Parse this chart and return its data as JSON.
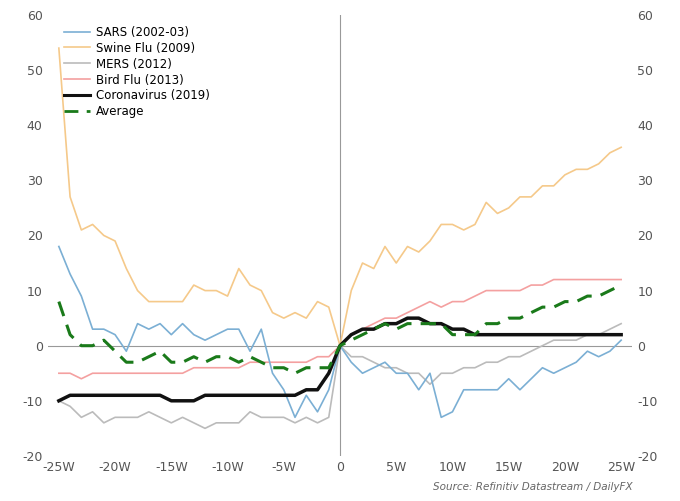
{
  "x_weeks": [
    -25,
    -24,
    -23,
    -22,
    -21,
    -20,
    -19,
    -18,
    -17,
    -16,
    -15,
    -14,
    -13,
    -12,
    -11,
    -10,
    -9,
    -8,
    -7,
    -6,
    -5,
    -4,
    -3,
    -2,
    -1,
    0,
    1,
    2,
    3,
    4,
    5,
    6,
    7,
    8,
    9,
    10,
    11,
    12,
    13,
    14,
    15,
    16,
    17,
    18,
    19,
    20,
    21,
    22,
    23,
    24,
    25
  ],
  "sars": [
    18,
    13,
    9,
    3,
    3,
    2,
    -1,
    4,
    3,
    4,
    2,
    4,
    2,
    1,
    2,
    3,
    3,
    -1,
    3,
    -5,
    -8,
    -13,
    -9,
    -12,
    -8,
    0,
    -3,
    -5,
    -4,
    -3,
    -5,
    -5,
    -8,
    -5,
    -13,
    -12,
    -8,
    -8,
    -8,
    -8,
    -6,
    -8,
    -6,
    -4,
    -5,
    -4,
    -3,
    -1,
    -2,
    -1,
    1
  ],
  "swine_flu": [
    54,
    27,
    21,
    22,
    20,
    19,
    14,
    10,
    8,
    8,
    8,
    8,
    11,
    10,
    10,
    9,
    14,
    11,
    10,
    6,
    5,
    6,
    5,
    8,
    7,
    0,
    10,
    15,
    14,
    18,
    15,
    18,
    17,
    19,
    22,
    22,
    21,
    22,
    26,
    24,
    25,
    27,
    27,
    29,
    29,
    31,
    32,
    32,
    33,
    35,
    36
  ],
  "mers": [
    -10,
    -11,
    -13,
    -12,
    -14,
    -13,
    -13,
    -13,
    -12,
    -13,
    -14,
    -13,
    -14,
    -15,
    -14,
    -14,
    -14,
    -12,
    -13,
    -13,
    -13,
    -14,
    -13,
    -14,
    -13,
    0,
    -2,
    -2,
    -3,
    -4,
    -4,
    -5,
    -5,
    -7,
    -5,
    -5,
    -4,
    -4,
    -3,
    -3,
    -2,
    -2,
    -1,
    0,
    1,
    1,
    1,
    2,
    2,
    3,
    4
  ],
  "bird_flu": [
    -5,
    -5,
    -6,
    -5,
    -5,
    -5,
    -5,
    -5,
    -5,
    -5,
    -5,
    -5,
    -4,
    -4,
    -4,
    -4,
    -4,
    -3,
    -3,
    -3,
    -3,
    -3,
    -3,
    -2,
    -2,
    0,
    2,
    3,
    4,
    5,
    5,
    6,
    7,
    8,
    7,
    8,
    8,
    9,
    10,
    10,
    10,
    10,
    11,
    11,
    12,
    12,
    12,
    12,
    12,
    12,
    12
  ],
  "coronavirus": [
    -10,
    -9,
    -9,
    -9,
    -9,
    -9,
    -9,
    -9,
    -9,
    -9,
    -10,
    -10,
    -10,
    -9,
    -9,
    -9,
    -9,
    -9,
    -9,
    -9,
    -9,
    -9,
    -8,
    -8,
    -5,
    0,
    2,
    3,
    3,
    4,
    4,
    5,
    5,
    4,
    4,
    3,
    3,
    2,
    2,
    2,
    2,
    2,
    2,
    2,
    2,
    2,
    2,
    2,
    2,
    2,
    2
  ],
  "average": [
    8,
    2,
    0,
    0,
    1,
    -1,
    -3,
    -3,
    -2,
    -1,
    -3,
    -3,
    -2,
    -3,
    -2,
    -2,
    -3,
    -2,
    -3,
    -4,
    -4,
    -5,
    -4,
    -4,
    -4,
    0,
    1,
    2,
    3,
    4,
    3,
    4,
    4,
    4,
    4,
    2,
    2,
    2,
    4,
    4,
    5,
    5,
    6,
    7,
    7,
    8,
    8,
    9,
    9,
    10,
    11
  ],
  "colors": {
    "sars": "#7bafd4",
    "swine_flu": "#f5c98a",
    "mers": "#bbbbbb",
    "bird_flu": "#f4a0a0",
    "coronavirus": "#111111",
    "average": "#1a7a1a"
  },
  "ylim": [
    -20,
    60
  ],
  "xlim": [
    -26,
    26
  ],
  "yticks": [
    -20,
    -10,
    0,
    10,
    20,
    30,
    40,
    50,
    60
  ],
  "xticks": [
    -25,
    -20,
    -15,
    -10,
    -5,
    0,
    5,
    10,
    15,
    20,
    25
  ],
  "background_color": "#ffffff",
  "source_text": "Source: Refinitiv Datastream / DailyFX",
  "legend_labels": [
    "SARS (2002-03)",
    "Swine Flu (2009)",
    "MERS (2012)",
    "Bird Flu (2013)",
    "Coronavirus (2019)",
    "Average"
  ]
}
